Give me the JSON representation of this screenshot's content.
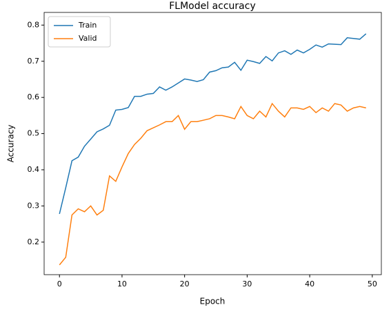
{
  "chart_data": {
    "type": "line",
    "title": "FLModel accuracy",
    "x_label": "Epoch",
    "y_label": "Accuracy",
    "x": [
      0,
      1,
      2,
      3,
      4,
      5,
      6,
      7,
      8,
      9,
      10,
      11,
      12,
      13,
      14,
      15,
      16,
      17,
      18,
      19,
      20,
      21,
      22,
      23,
      24,
      25,
      26,
      27,
      28,
      29,
      30,
      31,
      32,
      33,
      34,
      35,
      36,
      37,
      38,
      39,
      40,
      41,
      42,
      43,
      44,
      45,
      46,
      47,
      48,
      49
    ],
    "series": [
      {
        "name": "Train",
        "color": "#1f77b4",
        "values": [
          0.278,
          0.35,
          0.425,
          0.435,
          0.465,
          0.485,
          0.505,
          0.513,
          0.523,
          0.565,
          0.567,
          0.572,
          0.603,
          0.603,
          0.609,
          0.611,
          0.629,
          0.62,
          0.629,
          0.64,
          0.651,
          0.648,
          0.644,
          0.649,
          0.67,
          0.674,
          0.682,
          0.684,
          0.697,
          0.675,
          0.703,
          0.699,
          0.694,
          0.713,
          0.701,
          0.723,
          0.729,
          0.719,
          0.731,
          0.723,
          0.733,
          0.745,
          0.739,
          0.748,
          0.747,
          0.746,
          0.765,
          0.763,
          0.761,
          0.776
        ]
      },
      {
        "name": "Valid",
        "color": "#ff7f0e",
        "values": [
          0.137,
          0.158,
          0.275,
          0.292,
          0.284,
          0.3,
          0.275,
          0.288,
          0.383,
          0.368,
          0.408,
          0.445,
          0.47,
          0.487,
          0.508,
          0.516,
          0.524,
          0.533,
          0.533,
          0.55,
          0.512,
          0.533,
          0.533,
          0.537,
          0.541,
          0.55,
          0.55,
          0.546,
          0.541,
          0.575,
          0.55,
          0.541,
          0.562,
          0.546,
          0.583,
          0.562,
          0.546,
          0.571,
          0.571,
          0.567,
          0.575,
          0.558,
          0.571,
          0.562,
          0.583,
          0.579,
          0.562,
          0.571,
          0.575,
          0.571
        ]
      }
    ],
    "xlim": [
      -2.45,
      51.45
    ],
    "ylim": [
      0.11,
      0.835
    ],
    "xticks": [
      0,
      10,
      20,
      30,
      40,
      50
    ],
    "yticks": [
      0.2,
      0.3,
      0.4,
      0.5,
      0.6,
      0.7,
      0.8
    ],
    "grid": false,
    "legend": "upper left"
  }
}
